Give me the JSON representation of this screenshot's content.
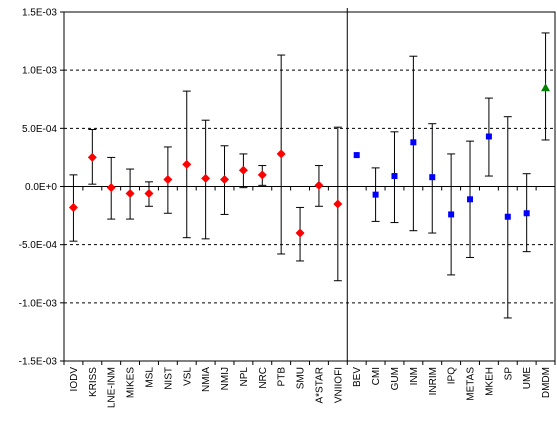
{
  "chart_data": {
    "type": "scatter",
    "title": "",
    "xlabel": "",
    "ylabel": "",
    "ylim": [
      -0.0015,
      0.0015
    ],
    "grid": "horizontal dashed",
    "y_ticks": [
      {
        "value": 0.0015,
        "label": "1.5E-03"
      },
      {
        "value": 0.001,
        "label": "1.0E-03"
      },
      {
        "value": 0.0005,
        "label": "5.0E-04"
      },
      {
        "value": 0.0,
        "label": "0.0E+0"
      },
      {
        "value": -0.0005,
        "label": "-5.0E-04"
      },
      {
        "value": -0.001,
        "label": "-1.0E-03"
      },
      {
        "value": -0.0015,
        "label": "-1.5E-03"
      }
    ],
    "categories": [
      "IODV",
      "KRISS",
      "LNE-INM",
      "MIKES",
      "MSL",
      "NIST",
      "VSL",
      "NMIA",
      "NMIJ",
      "NPL",
      "NRC",
      "PTB",
      "SMU",
      "A*STAR",
      "VNIIOFI",
      "BEV",
      "CMI",
      "GUM",
      "INM",
      "INRIM",
      "IPQ",
      "METAS",
      "MKEH",
      "SP",
      "UME",
      "DMDM"
    ],
    "divider_after": "VNIIOFI",
    "series": [
      {
        "marker": "diamond",
        "color": "#ff0000",
        "points": [
          {
            "category": "IODV",
            "y": -0.00018,
            "ylow": -0.00047,
            "yhigh": 0.0001
          },
          {
            "category": "KRISS",
            "y": 0.00025,
            "ylow": 2e-05,
            "yhigh": 0.00049
          },
          {
            "category": "LNE-INM",
            "y": -1e-05,
            "ylow": -0.00028,
            "yhigh": 0.00025
          },
          {
            "category": "MIKES",
            "y": -6e-05,
            "ylow": -0.00028,
            "yhigh": 0.00015
          },
          {
            "category": "MSL",
            "y": -6e-05,
            "ylow": -0.00017,
            "yhigh": 4e-05
          },
          {
            "category": "NIST",
            "y": 6e-05,
            "ylow": -0.00023,
            "yhigh": 0.00034
          },
          {
            "category": "VSL",
            "y": 0.00019,
            "ylow": -0.00044,
            "yhigh": 0.00082
          },
          {
            "category": "NMIA",
            "y": 7e-05,
            "ylow": -0.00045,
            "yhigh": 0.00057
          },
          {
            "category": "NMIJ",
            "y": 6e-05,
            "ylow": -0.00024,
            "yhigh": 0.00035
          },
          {
            "category": "NPL",
            "y": 0.00014,
            "ylow": -1e-05,
            "yhigh": 0.00028
          },
          {
            "category": "NRC",
            "y": 0.0001,
            "ylow": 1e-05,
            "yhigh": 0.00018
          },
          {
            "category": "PTB",
            "y": 0.00028,
            "ylow": -0.00058,
            "yhigh": 0.00113
          },
          {
            "category": "SMU",
            "y": -0.0004,
            "ylow": -0.00064,
            "yhigh": -0.00018
          },
          {
            "category": "A*STAR",
            "y": 1e-05,
            "ylow": -0.00017,
            "yhigh": 0.00018
          },
          {
            "category": "VNIIOFI",
            "y": -0.00015,
            "ylow": -0.00081,
            "yhigh": 0.00051
          }
        ]
      },
      {
        "marker": "square",
        "color": "#0000ff",
        "points": [
          {
            "category": "BEV",
            "y": 0.00027,
            "ylow": 0.00027,
            "yhigh": 0.00027
          },
          {
            "category": "CMI",
            "y": -7e-05,
            "ylow": -0.0003,
            "yhigh": 0.00016
          },
          {
            "category": "GUM",
            "y": 9e-05,
            "ylow": -0.00031,
            "yhigh": 0.00047
          },
          {
            "category": "INM",
            "y": 0.00038,
            "ylow": -0.00038,
            "yhigh": 0.00112
          },
          {
            "category": "INRIM",
            "y": 8e-05,
            "ylow": -0.0004,
            "yhigh": 0.00054
          },
          {
            "category": "IPQ",
            "y": -0.00024,
            "ylow": -0.00076,
            "yhigh": 0.00028
          },
          {
            "category": "METAS",
            "y": -0.00011,
            "ylow": -0.00061,
            "yhigh": 0.00039
          },
          {
            "category": "MKEH",
            "y": 0.00043,
            "ylow": 9e-05,
            "yhigh": 0.00076
          },
          {
            "category": "SP",
            "y": -0.00026,
            "ylow": -0.00113,
            "yhigh": 0.0006
          },
          {
            "category": "UME",
            "y": -0.00023,
            "ylow": -0.00056,
            "yhigh": 0.00011
          }
        ]
      },
      {
        "marker": "triangle",
        "color": "#008000",
        "points": [
          {
            "category": "DMDM",
            "y": 0.00085,
            "ylow": 0.0004,
            "yhigh": 0.00132
          }
        ]
      }
    ]
  }
}
